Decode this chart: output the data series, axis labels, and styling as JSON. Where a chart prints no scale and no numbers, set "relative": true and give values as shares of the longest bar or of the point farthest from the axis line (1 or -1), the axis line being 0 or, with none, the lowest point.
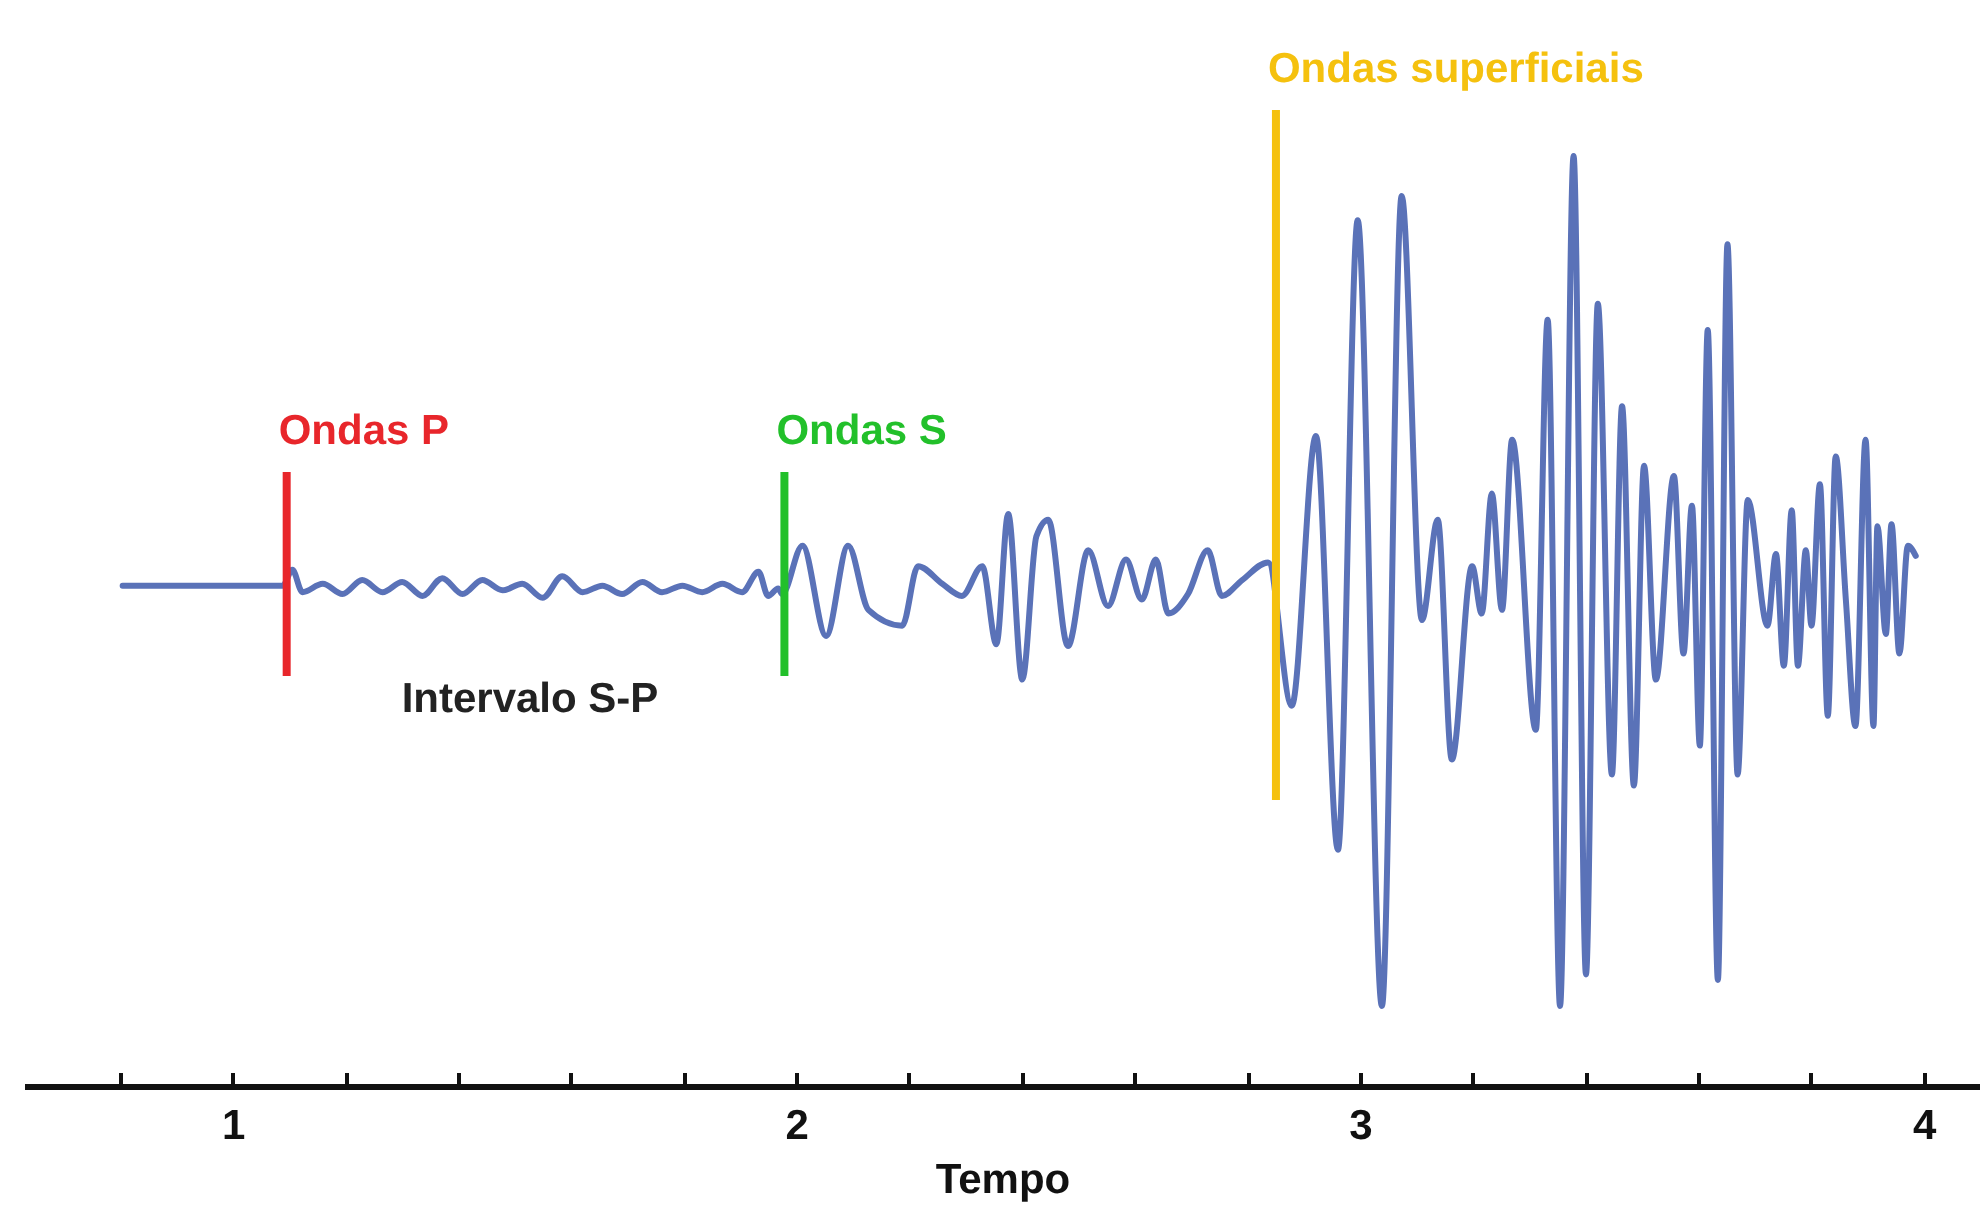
{
  "chart_data": {
    "type": "line",
    "relative": true,
    "xlabel": "Tempo",
    "xlim": [
      0.63,
      4.1
    ],
    "xticks": [
      {
        "value": 0.8,
        "label": null
      },
      1,
      {
        "value": 1.2,
        "label": null
      },
      {
        "value": 1.4,
        "label": null
      },
      {
        "value": 1.6,
        "label": null
      },
      {
        "value": 1.8,
        "label": null
      },
      2,
      {
        "value": 2.2,
        "label": null
      },
      {
        "value": 2.4,
        "label": null
      },
      {
        "value": 2.6,
        "label": null
      },
      {
        "value": 2.8,
        "label": null
      },
      3,
      {
        "value": 3.2,
        "label": null
      },
      {
        "value": 3.4,
        "label": null
      },
      {
        "value": 3.6,
        "label": null
      },
      {
        "value": 3.8,
        "label": null
      },
      4
    ],
    "grid": false,
    "line_style": "solid",
    "marker": "none",
    "x": [
      0.805,
      1.089,
      1.106,
      1.124,
      1.16,
      1.195,
      1.23,
      1.266,
      1.301,
      1.337,
      1.372,
      1.408,
      1.443,
      1.479,
      1.514,
      1.55,
      1.585,
      1.621,
      1.656,
      1.691,
      1.727,
      1.762,
      1.798,
      1.833,
      1.869,
      1.904,
      1.933,
      1.95,
      1.968,
      1.975,
      2.011,
      2.053,
      2.092,
      2.128,
      2.188,
      2.216,
      2.259,
      2.294,
      2.33,
      2.355,
      2.376,
      2.401,
      2.426,
      2.447,
      2.482,
      2.518,
      2.553,
      2.585,
      2.613,
      2.638,
      2.66,
      2.695,
      2.73,
      2.755,
      2.791,
      2.837,
      2.879,
      2.922,
      2.961,
      2.996,
      3.039,
      3.074,
      3.11,
      3.138,
      3.163,
      3.199,
      3.216,
      3.234,
      3.252,
      3.27,
      3.312,
      3.333,
      3.355,
      3.379,
      3.401,
      3.422,
      3.447,
      3.465,
      3.486,
      3.504,
      3.525,
      3.557,
      3.574,
      3.589,
      3.603,
      3.617,
      3.635,
      3.652,
      3.67,
      3.688,
      3.723,
      3.738,
      3.752,
      3.766,
      3.777,
      3.791,
      3.801,
      3.816,
      3.83,
      3.844,
      3.862,
      3.879,
      3.897,
      3.911,
      3.918,
      3.933,
      3.943,
      3.957,
      3.972,
      3.986
    ],
    "series": [
      {
        "color": "#5a72b8",
        "values": [
          0.538,
          0.538,
          0.555,
          0.531,
          0.54,
          0.529,
          0.544,
          0.531,
          0.542,
          0.527,
          0.546,
          0.529,
          0.544,
          0.533,
          0.54,
          0.525,
          0.548,
          0.531,
          0.538,
          0.529,
          0.542,
          0.531,
          0.538,
          0.531,
          0.54,
          0.531,
          0.553,
          0.527,
          0.535,
          0.529,
          0.581,
          0.484,
          0.581,
          0.512,
          0.495,
          0.559,
          0.54,
          0.527,
          0.559,
          0.475,
          0.615,
          0.437,
          0.591,
          0.609,
          0.473,
          0.576,
          0.516,
          0.566,
          0.523,
          0.566,
          0.508,
          0.529,
          0.576,
          0.527,
          0.544,
          0.563,
          0.409,
          0.699,
          0.254,
          0.931,
          0.086,
          0.957,
          0.501,
          0.609,
          0.351,
          0.559,
          0.508,
          0.637,
          0.512,
          0.695,
          0.383,
          0.824,
          0.086,
          1.0,
          0.12,
          0.841,
          0.335,
          0.731,
          0.323,
          0.667,
          0.437,
          0.656,
          0.465,
          0.624,
          0.366,
          0.813,
          0.114,
          0.905,
          0.335,
          0.63,
          0.495,
          0.572,
          0.452,
          0.619,
          0.452,
          0.576,
          0.495,
          0.647,
          0.398,
          0.677,
          0.523,
          0.387,
          0.695,
          0.387,
          0.602,
          0.486,
          0.604,
          0.465,
          0.581,
          0.57
        ]
      }
    ],
    "ref_lines": [
      {
        "axis": "x",
        "value": 1.096,
        "label": "Ondas P",
        "color": "#e8262b"
      },
      {
        "axis": "x",
        "value": 1.979,
        "label": "Ondas S",
        "color": "#22c02a"
      },
      {
        "axis": "x",
        "value": 2.851,
        "label": "Ondas superficiais",
        "color": "#f5c10e"
      }
    ],
    "annotations": [
      "Intervalo S-P"
    ]
  }
}
